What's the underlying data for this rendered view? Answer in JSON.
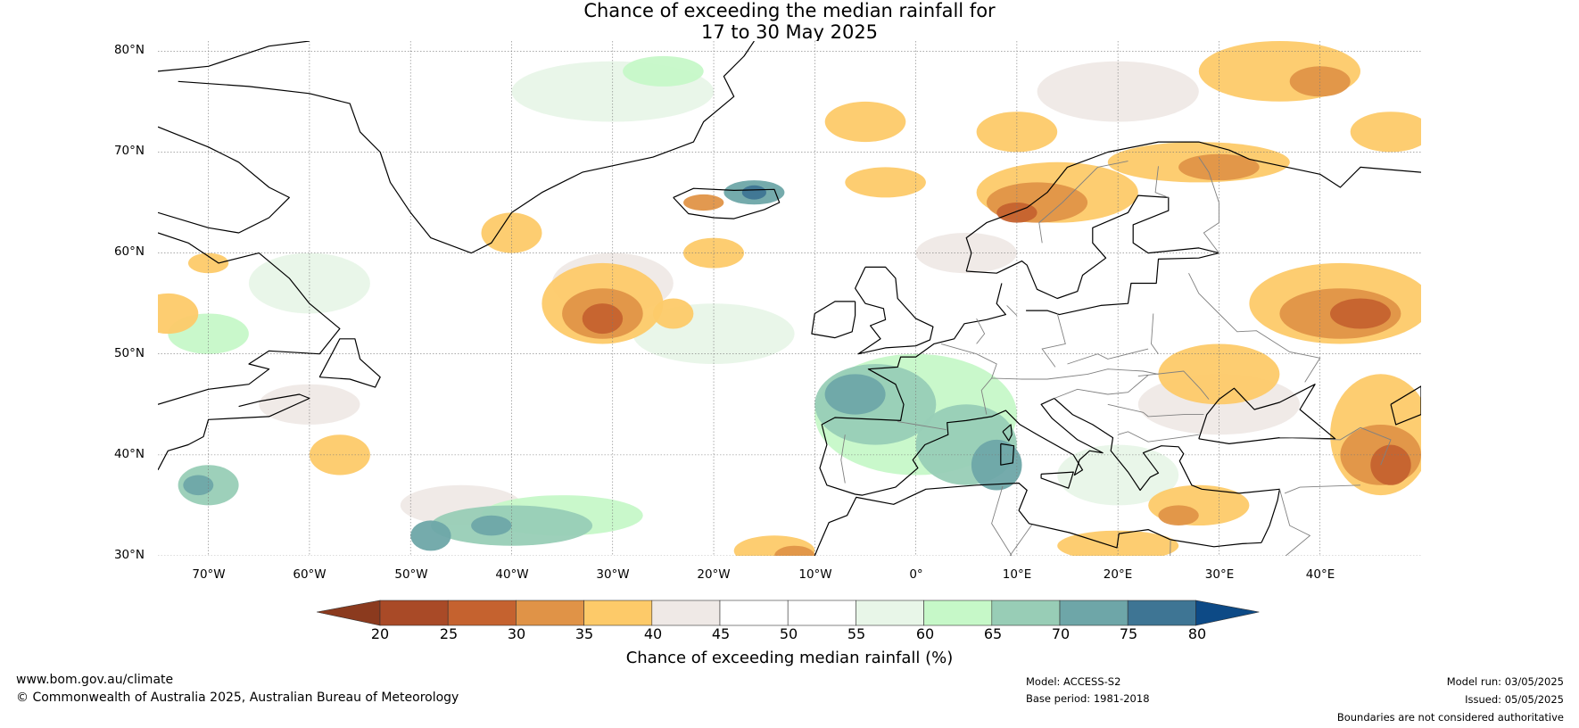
{
  "title": {
    "line1": "Chance of exceeding the median rainfall for",
    "line2": "17 to 30 May 2025"
  },
  "map": {
    "lat_labels": [
      "80°N",
      "70°N",
      "60°N",
      "50°N",
      "40°N",
      "30°N"
    ],
    "lon_labels": [
      "70°W",
      "60°W",
      "50°W",
      "40°W",
      "30°W",
      "20°W",
      "10°W",
      "0°",
      "10°E",
      "20°E",
      "30°E",
      "40°E"
    ],
    "lat_values": [
      80,
      70,
      60,
      50,
      40,
      30
    ],
    "lon_values": [
      -70,
      -60,
      -50,
      -40,
      -30,
      -20,
      -10,
      0,
      10,
      20,
      30,
      40
    ],
    "extent": {
      "lon_min": -75,
      "lon_max": 50,
      "lat_min": 30,
      "lat_max": 81
    },
    "land_color": "#000000",
    "border_color": "#808080",
    "ice_color": "#888888"
  },
  "colorbar": {
    "ticks": [
      "20",
      "25",
      "30",
      "35",
      "40",
      "45",
      "50",
      "55",
      "60",
      "65",
      "70",
      "75",
      "80"
    ],
    "under_color": "#8b3a1e",
    "over_color": "#0d4a86",
    "colors": [
      "#a94a27",
      "#c5622f",
      "#e09347",
      "#fdca69",
      "#efe9e6",
      "#ffffff",
      "#ffffff",
      "#e8f6e8",
      "#c6f8c8",
      "#98cdb6",
      "#6ea6a8",
      "#3e7594"
    ],
    "label": "Chance of exceeding median rainfall (%)"
  },
  "footer": {
    "website": "www.bom.gov.au/climate",
    "copyright": "© Commonwealth of Australia 2025, Australian Bureau of Meteorology",
    "model": "Model: ACCESS-S2",
    "base_period": "Base period: 1981-2018",
    "model_run": "Model run: 03/05/2025",
    "issued": "Issued: 05/05/2025",
    "disclaimer": "Boundaries are not considered authoritative"
  }
}
